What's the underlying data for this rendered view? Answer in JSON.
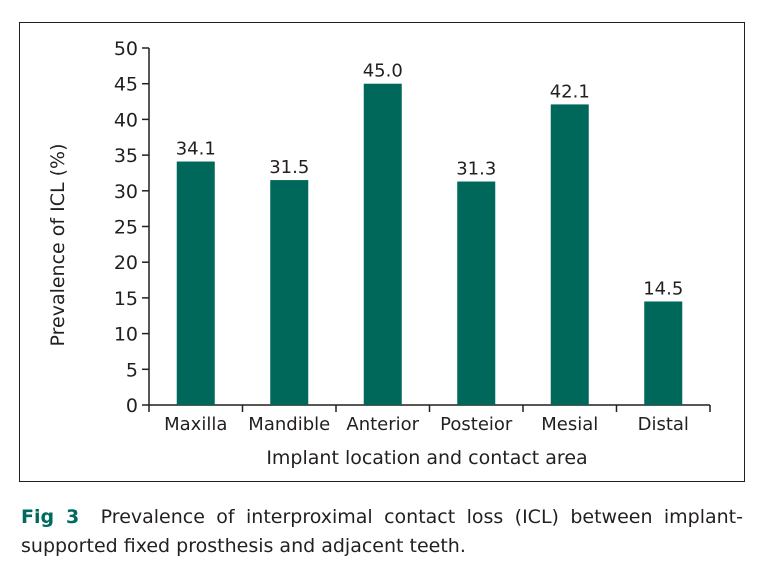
{
  "chart_data": {
    "type": "bar",
    "categories": [
      "Maxilla",
      "Mandible",
      "Anterior",
      "Posteior",
      "Mesial",
      "Distal"
    ],
    "values": [
      34.1,
      31.5,
      45.0,
      31.3,
      42.1,
      14.5
    ],
    "data_labels": [
      "34.1",
      "31.5",
      "45.0",
      "31.3",
      "42.1",
      "14.5"
    ],
    "xlabel": "Implant location and contact area",
    "ylabel": "Prevalence of ICL (%)",
    "ylim": [
      0,
      50
    ],
    "yticks": [
      0,
      5,
      10,
      15,
      20,
      25,
      30,
      35,
      40,
      45,
      50
    ],
    "bar_color": "#00675b",
    "grid": false,
    "legend": "none"
  },
  "caption": {
    "label": "Fig 3",
    "text": "Prevalence of interproximal contact loss (ICL) between implant-supported fixed prosthesis and adjacent teeth."
  }
}
